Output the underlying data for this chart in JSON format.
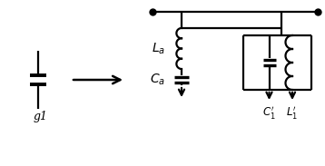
{
  "bg_color": "#ffffff",
  "line_color": "#000000",
  "line_width": 1.6,
  "text_color": "#000000",
  "label_g1": "g1",
  "label_La": "$L_a$",
  "label_Ca": "$C_a$",
  "label_C1p": "$C_1'$",
  "label_L1p": "$L_1'$",
  "figsize": [
    3.58,
    1.83
  ],
  "dpi": 100
}
